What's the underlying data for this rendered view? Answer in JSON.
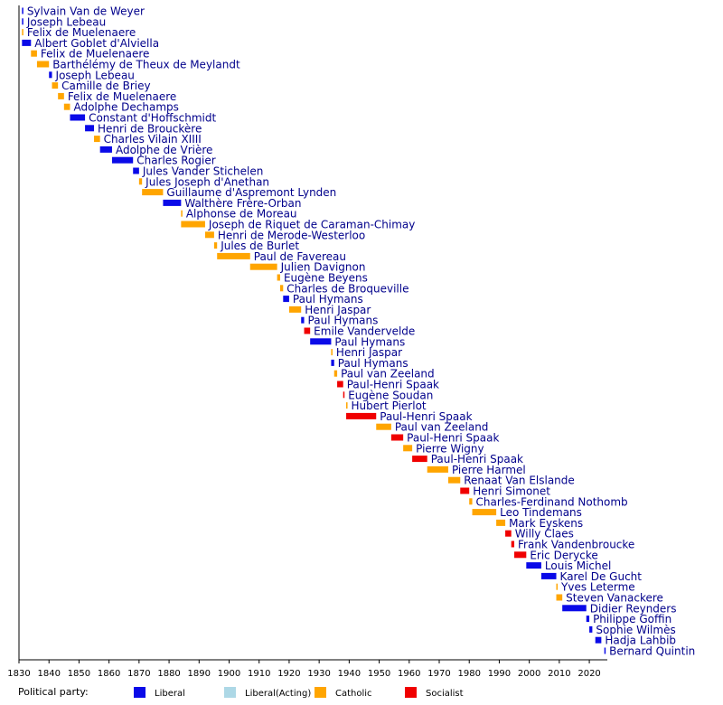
{
  "chart_data": {
    "type": "timeline",
    "legend_title": "Political party:",
    "parties": [
      {
        "name": "Liberal",
        "color": "#0a0ae8"
      },
      {
        "name": "Liberal(Acting)",
        "color": "#add8e6"
      },
      {
        "name": "Catholic",
        "color": "#ffa500"
      },
      {
        "name": "Socialist",
        "color": "#f00000"
      }
    ],
    "xlim": [
      1830,
      2026
    ],
    "xticks": [
      1830,
      1840,
      1850,
      1860,
      1870,
      1880,
      1890,
      1900,
      1910,
      1920,
      1930,
      1940,
      1950,
      1960,
      1970,
      1980,
      1990,
      2000,
      2010,
      2020
    ],
    "bars": [
      {
        "label": "Sylvain Van de Weyer",
        "start": 1831,
        "end": 1831,
        "party": "Liberal"
      },
      {
        "label": "Joseph Lebeau",
        "start": 1831,
        "end": 1831,
        "party": "Liberal"
      },
      {
        "label": "Felix de Muelenaere",
        "start": 1831,
        "end": 1831,
        "party": "Catholic"
      },
      {
        "label": "Albert Goblet d'Alviella",
        "start": 1831,
        "end": 1834,
        "party": "Liberal"
      },
      {
        "label": "Felix de Muelenaere",
        "start": 1834,
        "end": 1836,
        "party": "Catholic"
      },
      {
        "label": "Barthélémy de Theux de Meylandt",
        "start": 1836,
        "end": 1840,
        "party": "Catholic"
      },
      {
        "label": "Joseph Lebeau",
        "start": 1840,
        "end": 1841,
        "party": "Liberal"
      },
      {
        "label": "Camille de Briey",
        "start": 1841,
        "end": 1843,
        "party": "Catholic"
      },
      {
        "label": "Felix de Muelenaere",
        "start": 1843,
        "end": 1845,
        "party": "Catholic"
      },
      {
        "label": "Adolphe Dechamps",
        "start": 1845,
        "end": 1847,
        "party": "Catholic"
      },
      {
        "label": "Constant d'Hoffschmidt",
        "start": 1847,
        "end": 1852,
        "party": "Liberal"
      },
      {
        "label": "Henri de Brouckère",
        "start": 1852,
        "end": 1855,
        "party": "Liberal"
      },
      {
        "label": "Charles Vilain XIIII",
        "start": 1855,
        "end": 1857,
        "party": "Catholic"
      },
      {
        "label": "Adolphe de Vrière",
        "start": 1857,
        "end": 1861,
        "party": "Liberal"
      },
      {
        "label": "Charles Rogier",
        "start": 1861,
        "end": 1868,
        "party": "Liberal"
      },
      {
        "label": "Jules Vander Stichelen",
        "start": 1868,
        "end": 1870,
        "party": "Liberal"
      },
      {
        "label": "Jules Joseph d'Anethan",
        "start": 1870,
        "end": 1871,
        "party": "Catholic"
      },
      {
        "label": "Guillaume d'Aspremont Lynden",
        "start": 1871,
        "end": 1878,
        "party": "Catholic"
      },
      {
        "label": "Walthère Frère-Orban",
        "start": 1878,
        "end": 1884,
        "party": "Liberal"
      },
      {
        "label": "Alphonse de Moreau",
        "start": 1884,
        "end": 1884,
        "party": "Catholic"
      },
      {
        "label": "Joseph de Riquet de Caraman-Chimay",
        "start": 1884,
        "end": 1892,
        "party": "Catholic"
      },
      {
        "label": "Henri de Merode-Westerloo",
        "start": 1892,
        "end": 1895,
        "party": "Catholic"
      },
      {
        "label": "Jules de Burlet",
        "start": 1895,
        "end": 1896,
        "party": "Catholic"
      },
      {
        "label": "Paul de Favereau",
        "start": 1896,
        "end": 1907,
        "party": "Catholic"
      },
      {
        "label": "Julien Davignon",
        "start": 1907,
        "end": 1916,
        "party": "Catholic"
      },
      {
        "label": "Eugène Beyens",
        "start": 1916,
        "end": 1917,
        "party": "Catholic"
      },
      {
        "label": "Charles de Broqueville",
        "start": 1917,
        "end": 1918,
        "party": "Catholic"
      },
      {
        "label": "Paul Hymans",
        "start": 1918,
        "end": 1920,
        "party": "Liberal"
      },
      {
        "label": "Henri Jaspar",
        "start": 1920,
        "end": 1924,
        "party": "Catholic"
      },
      {
        "label": "Paul Hymans",
        "start": 1924,
        "end": 1925,
        "party": "Liberal"
      },
      {
        "label": "Emile Vandervelde",
        "start": 1925,
        "end": 1927,
        "party": "Socialist"
      },
      {
        "label": "Paul Hymans",
        "start": 1927,
        "end": 1934,
        "party": "Liberal"
      },
      {
        "label": "Henri Jaspar",
        "start": 1934,
        "end": 1934,
        "party": "Catholic"
      },
      {
        "label": "Paul Hymans",
        "start": 1934,
        "end": 1935,
        "party": "Liberal"
      },
      {
        "label": "Paul van Zeeland",
        "start": 1935,
        "end": 1936,
        "party": "Catholic"
      },
      {
        "label": "Paul-Henri Spaak",
        "start": 1936,
        "end": 1938,
        "party": "Socialist"
      },
      {
        "label": "Eugène Soudan",
        "start": 1938,
        "end": 1938,
        "party": "Socialist"
      },
      {
        "label": "Hubert Pierlot",
        "start": 1939,
        "end": 1939,
        "party": "Catholic"
      },
      {
        "label": "Paul-Henri Spaak",
        "start": 1939,
        "end": 1949,
        "party": "Socialist"
      },
      {
        "label": "Paul van Zeeland",
        "start": 1949,
        "end": 1954,
        "party": "Catholic"
      },
      {
        "label": "Paul-Henri Spaak",
        "start": 1954,
        "end": 1958,
        "party": "Socialist"
      },
      {
        "label": "Pierre Wigny",
        "start": 1958,
        "end": 1961,
        "party": "Catholic"
      },
      {
        "label": "Paul-Henri Spaak",
        "start": 1961,
        "end": 1966,
        "party": "Socialist"
      },
      {
        "label": "Pierre Harmel",
        "start": 1966,
        "end": 1973,
        "party": "Catholic"
      },
      {
        "label": "Renaat Van Elslande",
        "start": 1973,
        "end": 1977,
        "party": "Catholic"
      },
      {
        "label": "Henri Simonet",
        "start": 1977,
        "end": 1980,
        "party": "Socialist"
      },
      {
        "label": "Charles-Ferdinand Nothomb",
        "start": 1980,
        "end": 1981,
        "party": "Catholic"
      },
      {
        "label": "Leo Tindemans",
        "start": 1981,
        "end": 1989,
        "party": "Catholic"
      },
      {
        "label": "Mark Eyskens",
        "start": 1989,
        "end": 1992,
        "party": "Catholic"
      },
      {
        "label": "Willy Claes",
        "start": 1992,
        "end": 1994,
        "party": "Socialist"
      },
      {
        "label": "Frank Vandenbroucke",
        "start": 1994,
        "end": 1995,
        "party": "Socialist"
      },
      {
        "label": "Eric Derycke",
        "start": 1995,
        "end": 1999,
        "party": "Socialist"
      },
      {
        "label": "Louis Michel",
        "start": 1999,
        "end": 2004,
        "party": "Liberal"
      },
      {
        "label": "Karel De Gucht",
        "start": 2004,
        "end": 2009,
        "party": "Liberal"
      },
      {
        "label": "Yves Leterme",
        "start": 2009,
        "end": 2009,
        "party": "Catholic"
      },
      {
        "label": "Steven Vanackere",
        "start": 2009,
        "end": 2011,
        "party": "Catholic"
      },
      {
        "label": "Didier Reynders",
        "start": 2011,
        "end": 2019,
        "party": "Liberal"
      },
      {
        "label": "Philippe Goffin",
        "start": 2019,
        "end": 2020,
        "party": "Liberal"
      },
      {
        "label": "Sophie Wilmès",
        "start": 2020,
        "end": 2021,
        "party": "Liberal"
      },
      {
        "label": "Hadja Lahbib",
        "start": 2022,
        "end": 2024,
        "party": "Liberal"
      },
      {
        "label": "Bernard Quintin",
        "start": 2025,
        "end": 2025,
        "party": "Liberal"
      }
    ]
  }
}
